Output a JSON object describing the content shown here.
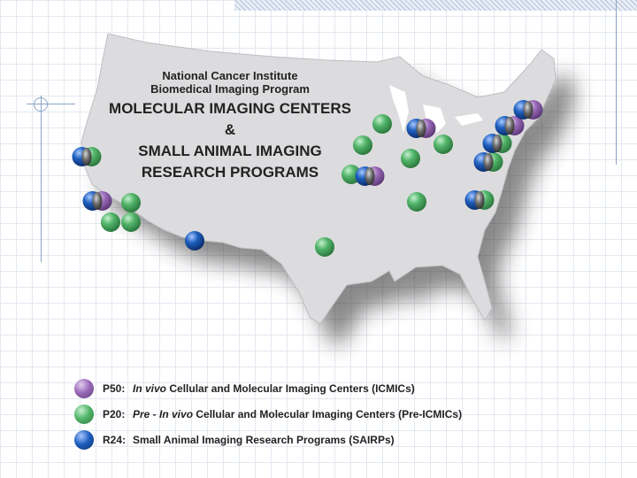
{
  "map": {
    "title_line1": "National Cancer Institute",
    "title_line2": "Biomedical Imaging Program",
    "subtitle_line1": "MOLECULAR IMAGING CENTERS",
    "subtitle_line2": "&",
    "subtitle_line3": "SMALL ANIMAL IMAGING",
    "subtitle_line4": "RESEARCH PROGRAMS"
  },
  "legend": [
    {
      "code": "P50:",
      "italic": "In vivo",
      "text": " Cellular and Molecular Imaging Centers (ICMICs)",
      "color": "#9a6ab8"
    },
    {
      "code": "P20:",
      "italic": "Pre - In vivo",
      "text": " Cellular and Molecular Imaging Centers (Pre-ICMICs)",
      "color": "#52b56a"
    },
    {
      "code": "R24:",
      "italic": "",
      "text": "Small Animal Imaging Research Programs (SAIRPs)",
      "color": "#1f5fbf"
    }
  ],
  "colors": {
    "p50": "#9a6ab8",
    "p20": "#52b56a",
    "r24": "#1f5fbf",
    "map_fill": "#dcdcde"
  }
}
